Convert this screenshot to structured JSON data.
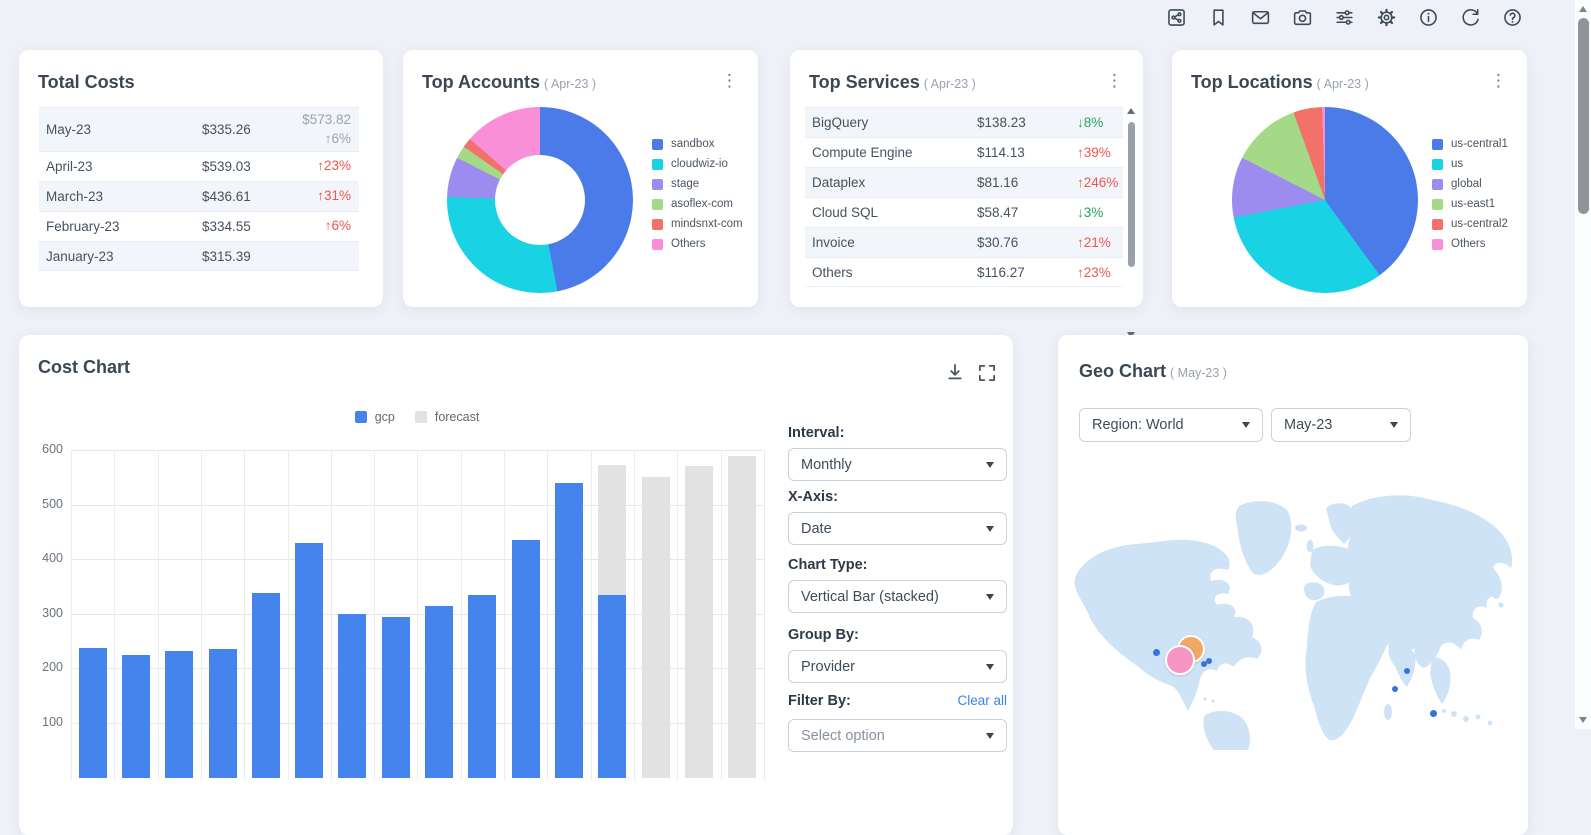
{
  "header": {
    "icons": [
      {
        "name": "share"
      },
      {
        "name": "bookmark"
      },
      {
        "name": "mail"
      },
      {
        "name": "camera"
      },
      {
        "name": "tune"
      },
      {
        "name": "settings"
      },
      {
        "name": "info"
      },
      {
        "name": "refresh"
      },
      {
        "name": "help"
      }
    ]
  },
  "total_costs": {
    "title": "Total Costs",
    "rows": [
      {
        "month": "May-23",
        "value": "$335.26",
        "change_lines": [
          "$573.82",
          "↑6%"
        ],
        "change_color": "gray"
      },
      {
        "month": "April-23",
        "value": "$539.03",
        "change_lines": [
          "↑23%"
        ],
        "change_color": "red"
      },
      {
        "month": "March-23",
        "value": "$436.61",
        "change_lines": [
          "↑31%"
        ],
        "change_color": "red"
      },
      {
        "month": "February-23",
        "value": "$334.55",
        "change_lines": [
          "↑6%"
        ],
        "change_color": "red"
      },
      {
        "month": "January-23",
        "value": "$315.39",
        "change_lines": [],
        "change_color": null
      }
    ]
  },
  "top_accounts": {
    "title": "Top Accounts",
    "period": "( Apr-23 )"
  },
  "top_services": {
    "title": "Top Services",
    "period": "( Apr-23 )",
    "rows": [
      {
        "name": "BigQuery",
        "value": "$138.23",
        "change": "↓8%",
        "change_color": "green"
      },
      {
        "name": "Compute Engine",
        "value": "$114.13",
        "change": "↑39%",
        "change_color": "red"
      },
      {
        "name": "Dataplex",
        "value": "$81.16",
        "change": "↑246%",
        "change_color": "red"
      },
      {
        "name": "Cloud SQL",
        "value": "$58.47",
        "change": "↓3%",
        "change_color": "green"
      },
      {
        "name": "Invoice",
        "value": "$30.76",
        "change": "↑21%",
        "change_color": "red"
      },
      {
        "name": "Others",
        "value": "$116.27",
        "change": "↑23%",
        "change_color": "red"
      }
    ]
  },
  "top_locations": {
    "title": "Top Locations",
    "period": "( Apr-23 )"
  },
  "cost_chart": {
    "title": "Cost Chart",
    "controls": [
      {
        "label": "Interval:",
        "value": "Monthly"
      },
      {
        "label": "X-Axis:",
        "value": "Date"
      },
      {
        "label": "Chart Type:",
        "value": "Vertical Bar (stacked)"
      },
      {
        "label": "Group By:",
        "value": "Provider"
      }
    ],
    "filter": {
      "label": "Filter By:",
      "clear_label": "Clear all",
      "placeholder": "Select option"
    }
  },
  "geo_chart": {
    "title": "Geo Chart",
    "period": "( May-23 )",
    "region_value": "Region: World",
    "month_value": "May-23"
  },
  "colors": {
    "accent_blue": "#4584ec",
    "forecast_gray": "#e2e2e2",
    "red": "#f0544c",
    "green": "#23a55a",
    "muted": "#9aa3af",
    "link": "#3d7ff0",
    "map_land": "#cfe3f7"
  },
  "chart_data": [
    {
      "id": "top-accounts-donut",
      "type": "pie",
      "subtype": "donut",
      "title": "Top Accounts",
      "period": "Apr-23",
      "legend_position": "right",
      "slices": [
        {
          "label": "sandbox",
          "pct": 47,
          "color": "#4b7be8"
        },
        {
          "label": "cloudwiz-io",
          "pct": 28.5,
          "color": "#19d2e3"
        },
        {
          "label": "stage",
          "pct": 7,
          "color": "#9c8cf0"
        },
        {
          "label": "asoflex-com",
          "pct": 2.2,
          "color": "#a3d987"
        },
        {
          "label": "mindsnxt-com",
          "pct": 1.7,
          "color": "#f4716b"
        },
        {
          "label": "Others",
          "pct": 13.6,
          "color": "#f98fd6"
        }
      ]
    },
    {
      "id": "top-locations-pie",
      "type": "pie",
      "title": "Top Locations",
      "period": "Apr-23",
      "legend_position": "right",
      "slices": [
        {
          "label": "us-central1",
          "pct": 40,
          "color": "#4b7be8"
        },
        {
          "label": "us",
          "pct": 32,
          "color": "#19d2e3"
        },
        {
          "label": "global",
          "pct": 10.5,
          "color": "#9c8cf0"
        },
        {
          "label": "us-east1",
          "pct": 12,
          "color": "#a3d987"
        },
        {
          "label": "us-central2",
          "pct": 5,
          "color": "#f4716b"
        },
        {
          "label": "Others",
          "pct": 0.5,
          "color": "#f98fd6"
        }
      ]
    },
    {
      "id": "cost-bars",
      "type": "bar",
      "stacked": true,
      "title": "Cost Chart",
      "ylim": [
        0,
        600
      ],
      "y_ticks": [
        600,
        500,
        400,
        300,
        200,
        100
      ],
      "grid": true,
      "x_tick_labels_visible": false,
      "legend_position": "top",
      "series": [
        {
          "name": "gcp",
          "color": "#4584ec"
        },
        {
          "name": "forecast",
          "color": "#e2e2e2"
        }
      ],
      "bars": [
        {
          "gcp": 237,
          "forecast": 0
        },
        {
          "gcp": 225,
          "forecast": 0
        },
        {
          "gcp": 232,
          "forecast": 0
        },
        {
          "gcp": 236,
          "forecast": 0
        },
        {
          "gcp": 338,
          "forecast": 0
        },
        {
          "gcp": 430,
          "forecast": 0
        },
        {
          "gcp": 300,
          "forecast": 0
        },
        {
          "gcp": 295,
          "forecast": 0
        },
        {
          "gcp": 315,
          "forecast": 0
        },
        {
          "gcp": 334,
          "forecast": 0
        },
        {
          "gcp": 436,
          "forecast": 0
        },
        {
          "gcp": 539,
          "forecast": 0
        },
        {
          "gcp": 335,
          "forecast": 238
        },
        {
          "gcp": 0,
          "forecast": 551
        },
        {
          "gcp": 0,
          "forecast": 571
        },
        {
          "gcp": 0,
          "forecast": 590
        }
      ]
    },
    {
      "id": "geo-map",
      "type": "scatter",
      "title": "Geo Chart",
      "period": "May-23",
      "markers": [
        {
          "kind": "bubble",
          "color": "#f0a863",
          "x": 133,
          "y": 199,
          "r": 12
        },
        {
          "kind": "bubble",
          "color": "#f795c5",
          "x": 122,
          "y": 210,
          "r": 13
        },
        {
          "kind": "dot",
          "color": "#3a6fe0",
          "x": 98,
          "y": 202,
          "r": 3.5
        },
        {
          "kind": "dot",
          "color": "#3a6fe0",
          "x": 146,
          "y": 214,
          "r": 3.2
        },
        {
          "kind": "dot",
          "color": "#3a6fe0",
          "x": 151,
          "y": 211,
          "r": 3.2
        },
        {
          "kind": "dot",
          "color": "#3a6fe0",
          "x": 349,
          "y": 221,
          "r": 3.2
        },
        {
          "kind": "dot",
          "color": "#3a6fe0",
          "x": 337,
          "y": 239,
          "r": 3.2
        },
        {
          "kind": "dot",
          "color": "#3a6fe0",
          "x": 375,
          "y": 263,
          "r": 3.5
        }
      ]
    }
  ]
}
